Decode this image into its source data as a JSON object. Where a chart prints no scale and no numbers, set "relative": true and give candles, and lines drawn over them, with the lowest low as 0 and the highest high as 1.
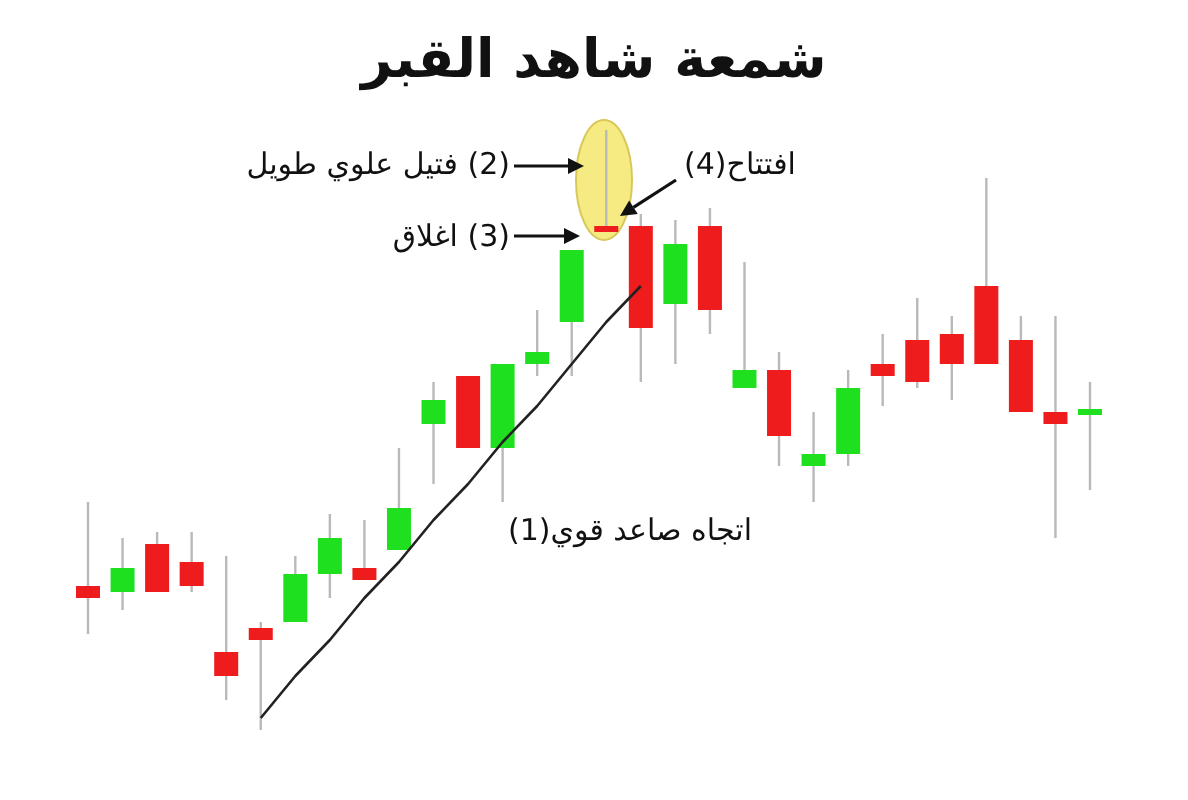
{
  "chart_data": {
    "type": "candlestick",
    "title": "شمعة شاهد القبر",
    "relative": true,
    "categories": [
      null,
      null,
      null,
      null,
      null,
      null,
      null,
      null,
      null,
      null,
      null,
      null,
      null,
      null,
      null,
      null,
      null,
      null,
      null,
      null,
      null,
      null,
      null,
      null,
      null,
      null,
      null,
      null,
      null,
      null
    ],
    "ohlc": [
      [
        0.24,
        0.38,
        0.16,
        0.22
      ],
      [
        0.23,
        0.32,
        0.2,
        0.27
      ],
      [
        0.31,
        0.33,
        0.23,
        0.23
      ],
      [
        0.28,
        0.33,
        0.23,
        0.24
      ],
      [
        0.13,
        0.29,
        0.05,
        0.09
      ],
      [
        0.17,
        0.18,
        0.0,
        0.15
      ],
      [
        0.18,
        0.29,
        0.18,
        0.26
      ],
      [
        0.26,
        0.36,
        0.22,
        0.32
      ],
      [
        0.27,
        0.35,
        0.25,
        0.25
      ],
      [
        0.3,
        0.47,
        0.3,
        0.37
      ],
      [
        0.51,
        0.58,
        0.41,
        0.55
      ],
      [
        0.59,
        0.59,
        0.47,
        0.47
      ],
      [
        0.47,
        0.61,
        0.38,
        0.61
      ],
      [
        0.61,
        0.7,
        0.59,
        0.63
      ],
      [
        0.68,
        0.8,
        0.59,
        0.8
      ],
      [
        0.84,
        1.0,
        0.83,
        0.83
      ],
      [
        0.84,
        0.86,
        0.58,
        0.67
      ],
      [
        0.71,
        0.85,
        0.61,
        0.81
      ],
      [
        0.84,
        0.87,
        0.66,
        0.7
      ],
      [
        0.57,
        0.78,
        0.57,
        0.6
      ],
      [
        0.6,
        0.63,
        0.44,
        0.49
      ],
      [
        0.44,
        0.53,
        0.38,
        0.46
      ],
      [
        0.46,
        0.6,
        0.44,
        0.57
      ],
      [
        0.61,
        0.66,
        0.54,
        0.59
      ],
      [
        0.65,
        0.72,
        0.57,
        0.58
      ],
      [
        0.66,
        0.69,
        0.55,
        0.61
      ],
      [
        0.74,
        0.92,
        0.61,
        0.61
      ],
      [
        0.65,
        0.69,
        0.53,
        0.53
      ],
      [
        0.53,
        0.69,
        0.32,
        0.51
      ],
      [
        0.53,
        0.58,
        0.4,
        0.53
      ]
    ],
    "colors": [
      "#ee1c1c",
      "#1fe01f",
      "#ee1c1c",
      "#ee1c1c",
      "#ee1c1c",
      "#ee1c1c",
      "#1fe01f",
      "#1fe01f",
      "#ee1c1c",
      "#1fe01f",
      "#1fe01f",
      "#ee1c1c",
      "#1fe01f",
      "#1fe01f",
      "#1fe01f",
      "#ee1c1c",
      "#ee1c1c",
      "#1fe01f",
      "#ee1c1c",
      "#1fe01f",
      "#ee1c1c",
      "#1fe01f",
      "#1fe01f",
      "#ee1c1c",
      "#ee1c1c",
      "#ee1c1c",
      "#ee1c1c",
      "#ee1c1c",
      "#ee1c1c",
      "#1fe01f"
    ],
    "series": [
      {
        "type": "line",
        "color": "#222222",
        "values": [
          null,
          null,
          null,
          null,
          null,
          0.02,
          0.09,
          0.15,
          0.22,
          0.28,
          0.35,
          0.41,
          0.48,
          0.54,
          0.61,
          0.68,
          0.74,
          null,
          null,
          null,
          null,
          null,
          null,
          null,
          null,
          null,
          null,
          null,
          null,
          null
        ]
      }
    ],
    "annotations": [
      "اتجاه صاعد قوي(1)",
      "(2) فتيل علوي طويل",
      "(3) اغلاق",
      "افتتاح(4)"
    ]
  }
}
